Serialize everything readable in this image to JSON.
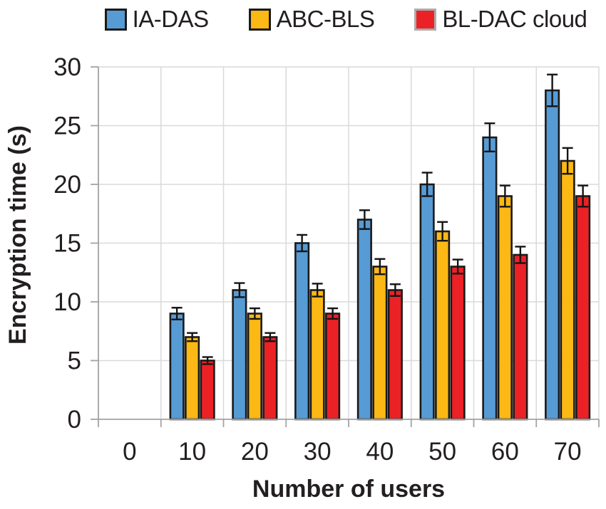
{
  "figure_title": "Encryption time comparison bar chart",
  "colors": {
    "text": "#231F20",
    "grid": "#DADADA",
    "axis": "#A3A3A3",
    "bar_border": "#1A1A1A",
    "error_bar": "#141414"
  },
  "chart_data": {
    "type": "bar",
    "title": "",
    "xlabel": "Number of users",
    "ylabel": "Encryption time (s)",
    "categories": [
      "0",
      "10",
      "20",
      "30",
      "40",
      "50",
      "60",
      "70"
    ],
    "series": [
      {
        "name": "IA-DAS",
        "color": "#579BD5",
        "swatch_border": "#1A1A1A",
        "values": [
          null,
          9,
          11,
          15,
          17,
          20,
          24,
          28
        ],
        "errors": [
          null,
          0.5,
          0.6,
          0.7,
          0.8,
          1.0,
          1.2,
          1.35
        ]
      },
      {
        "name": "ABC-BLS",
        "color": "#FCB814",
        "swatch_border": "#1A1A1A",
        "values": [
          null,
          7,
          9,
          11,
          13,
          16,
          19,
          22
        ],
        "errors": [
          null,
          0.35,
          0.45,
          0.55,
          0.65,
          0.8,
          0.9,
          1.1
        ]
      },
      {
        "name": "BL-DAC cloud",
        "color": "#EC2126",
        "swatch_border": "#ABABAB",
        "values": [
          null,
          5,
          7,
          9,
          11,
          13,
          14,
          19
        ],
        "errors": [
          null,
          0.3,
          0.35,
          0.45,
          0.5,
          0.6,
          0.7,
          0.9
        ]
      }
    ],
    "ylim": [
      0,
      30
    ],
    "ytick_step": 5,
    "grid": true,
    "error_bars": true,
    "legend_position": "top"
  }
}
